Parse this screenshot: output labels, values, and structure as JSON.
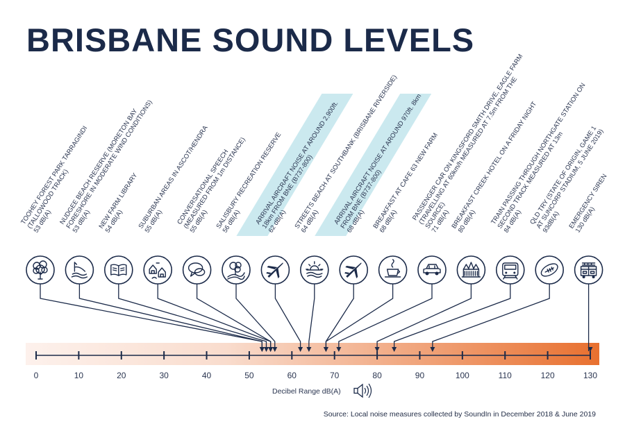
{
  "title": "BRISBANE SOUND LEVELS",
  "axis": {
    "min": 0,
    "max": 130,
    "ticks": [
      0,
      10,
      20,
      30,
      40,
      50,
      60,
      70,
      80,
      90,
      100,
      110,
      120,
      130
    ],
    "caption": "Decibel Range dB(A)"
  },
  "source": "Source: Local noise measures collected by SoundIn in December 2018 & June 2019",
  "colors": {
    "ink": "#1b2a49",
    "highlight": "#cbe9ef",
    "bar_start": "#fdf1ec",
    "bar_end": "#e8702f"
  },
  "items": [
    {
      "icon": "tree-icon",
      "db": 53,
      "highlight": false,
      "lines": [
        "TOOHEY FOREST PARK TARRAGINDI",
        "(TALLOWOOD TRACK)",
        "53 dB(A)"
      ]
    },
    {
      "icon": "beach-icon",
      "db": 53,
      "highlight": false,
      "lines": [
        "NUDGEE BEACH RESERVE (MORETON BAY",
        "FORESHORE IN MODERATE WIND CONDITIONS)",
        "53 dB(A)"
      ]
    },
    {
      "icon": "book-icon",
      "db": 54,
      "highlight": false,
      "lines": [
        "NEW FARM LIBRARY",
        "54 dB(A)"
      ]
    },
    {
      "icon": "houses-icon",
      "db": 55,
      "highlight": false,
      "lines": [
        "SUBURBAN AREAS IN ASCOT/HENDRA",
        "55 dB(A)"
      ]
    },
    {
      "icon": "speech-icon",
      "db": 55,
      "highlight": false,
      "lines": [
        "CONVERSATIONAL SPEECH",
        "(MEASURED FROM 1m DISTANCE)",
        "55 dB(A)"
      ]
    },
    {
      "icon": "park-icon",
      "db": 56,
      "highlight": false,
      "lines": [
        "SALISBURY RECREATION RESERVE",
        "56 dB(A)"
      ]
    },
    {
      "icon": "airplane-icon",
      "db": 62,
      "highlight": true,
      "lines": [
        "ARRIVAL AIRCRAFT NOISE AT AROUND 2,900ft.",
        "18km FROM BNE (B737-800)",
        "62 dB(A)"
      ]
    },
    {
      "icon": "sun-beach-icon",
      "db": 64,
      "highlight": false,
      "lines": [
        "STREETS BEACH AT SOUTHBANK (BRISBANE RIVERSIDE)",
        "64 dB(A)"
      ]
    },
    {
      "icon": "airplane-icon",
      "db": 68,
      "highlight": true,
      "lines": [
        "ARRIVAL AIRCRAFT NOISE AT AROUND 970ft. 8km",
        "FROM BNE (B737-800)",
        "68 dB(A)"
      ]
    },
    {
      "icon": "coffee-icon",
      "db": 68,
      "highlight": false,
      "lines": [
        "BREAKFAST AT CAFE 63 NEW FARM",
        "68 dB(A)"
      ]
    },
    {
      "icon": "car-icon",
      "db": 71,
      "highlight": false,
      "lines": [
        "PASSENGER CAR ON KINGSFORD SMITH DRIVE, EAGLE FARM",
        "(TRAVELLING AT 60km/h MEASURED AT 7.5m FROM THE",
        "SOURCE)",
        "71 dB(A)"
      ]
    },
    {
      "icon": "hotel-icon",
      "db": 80,
      "highlight": false,
      "lines": [
        "BREAKFAST CREEK HOTEL ON A FRIDAY NIGHT",
        "80 dB(A)"
      ]
    },
    {
      "icon": "train-icon",
      "db": 84,
      "highlight": false,
      "lines": [
        "TRAIN PASSING THROUGH NORTHGATE STATION ON",
        "SECOND TRACK MEASURED AT 13m",
        "84 dB(A)"
      ]
    },
    {
      "icon": "football-icon",
      "db": 93,
      "highlight": false,
      "lines": [
        "QLD TRY (STATE OF ORIGIN, GAME 1",
        "AT SUNCORP STADIUM, 5 JUNE 2019)",
        "93dB(A)"
      ]
    },
    {
      "icon": "firetruck-icon",
      "db": 130,
      "highlight": false,
      "lines": [
        "EMERGENCY SIREN",
        "130 dB(A)"
      ]
    }
  ]
}
